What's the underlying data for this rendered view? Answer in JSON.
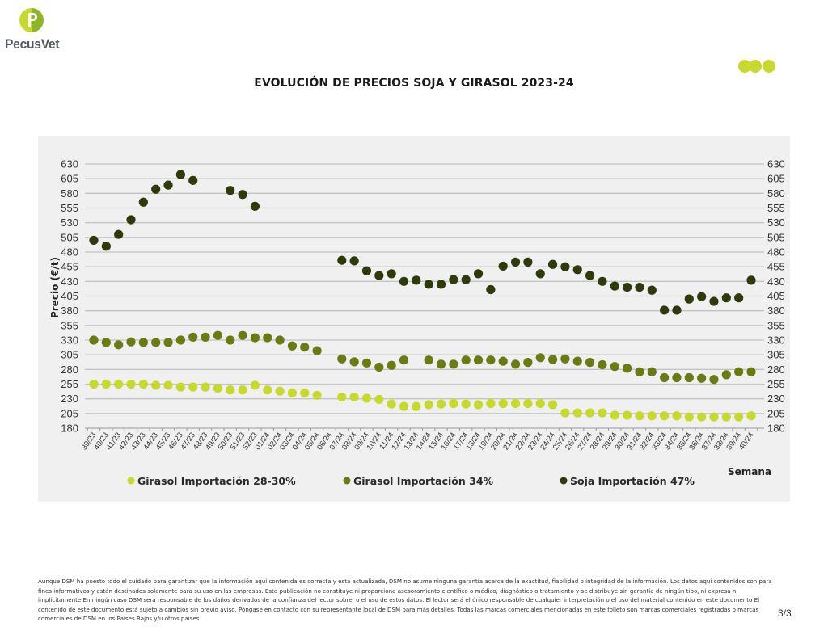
{
  "header": {
    "logo_text": "PecusVet",
    "logo_icon": "pecusvet-p-logo-icon",
    "decor_icon": "three-green-dots-icon"
  },
  "colors": {
    "girasol_28_30": "#c8d92d",
    "girasol_34": "#6b7a12",
    "soja_47": "#2e3a0a",
    "panel_bg": "#f0f0f0",
    "grid": "#c4c4c4",
    "logo_green": "#a8c62a"
  },
  "chart_data": {
    "type": "scatter",
    "title": "EVOLUCIÓN DE PRECIOS SOJA Y GIRASOL 2023-24",
    "xlabel": "Semana",
    "ylabel": "Precio (€/t)",
    "ylim": [
      180,
      630
    ],
    "yticks": [
      180,
      205,
      230,
      255,
      280,
      305,
      330,
      355,
      380,
      405,
      430,
      455,
      480,
      505,
      530,
      555,
      580,
      605,
      630
    ],
    "grid": true,
    "secondary_y_axis": true,
    "legend_position": "bottom",
    "categories": [
      "39/23",
      "40/23",
      "41/23",
      "42/23",
      "43/23",
      "44/23",
      "45/23",
      "46/23",
      "47/23",
      "48/23",
      "49/23",
      "50/23",
      "51/23",
      "52/23",
      "01/24",
      "02/24",
      "03/24",
      "04/24",
      "05/24",
      "06/24",
      "07/24",
      "08/24",
      "09/24",
      "10/24",
      "11/24",
      "12/24",
      "13/24",
      "14/24",
      "15/24",
      "16/24",
      "17/24",
      "18/24",
      "19/24",
      "20/24",
      "21/24",
      "22/24",
      "23/24",
      "24/24",
      "25/24",
      "26/24",
      "27/24",
      "28/24",
      "29/24",
      "30/24",
      "31/24",
      "32/24",
      "33/24",
      "34/24",
      "35/24",
      "36/24",
      "37/24",
      "38/24",
      "39/24",
      "40/24"
    ],
    "series": [
      {
        "name": "Girasol Importación 28-30%",
        "color_key": "girasol_28_30",
        "values": [
          255,
          255,
          255,
          255,
          255,
          253,
          253,
          250,
          250,
          250,
          248,
          245,
          245,
          253,
          245,
          243,
          240,
          240,
          236,
          null,
          233,
          233,
          231,
          229,
          221,
          217,
          217,
          220,
          221,
          222,
          221,
          220,
          222,
          222,
          222,
          222,
          222,
          220,
          206,
          206,
          206,
          206,
          202,
          202,
          201,
          201,
          201,
          201,
          199,
          199,
          199,
          199,
          199,
          201
        ]
      },
      {
        "name": "Girasol Importación 34%",
        "color_key": "girasol_34",
        "values": [
          330,
          326,
          322,
          327,
          326,
          326,
          326,
          330,
          335,
          335,
          338,
          330,
          338,
          334,
          334,
          330,
          320,
          318,
          312,
          null,
          298,
          293,
          291,
          284,
          287,
          296,
          null,
          296,
          289,
          289,
          296,
          296,
          296,
          294,
          289,
          292,
          300,
          297,
          298,
          294,
          292,
          288,
          285,
          282,
          276,
          276,
          266,
          266,
          266,
          265,
          263,
          271,
          276,
          276
        ]
      },
      {
        "name": "Soja Importación 47%",
        "color_key": "soja_47",
        "values": [
          500,
          490,
          510,
          535,
          565,
          587,
          594,
          612,
          602,
          null,
          null,
          585,
          578,
          558,
          null,
          null,
          null,
          null,
          null,
          null,
          466,
          465,
          448,
          440,
          443,
          430,
          432,
          425,
          425,
          433,
          433,
          443,
          416,
          456,
          463,
          463,
          443,
          459,
          455,
          450,
          440,
          430,
          422,
          420,
          420,
          415,
          381,
          381,
          400,
          404,
          396,
          402,
          402,
          432
        ]
      }
    ]
  },
  "footer": {
    "disclaimer": "Aunque DSM ha puesto todo el cuidado para garantizar que la información aquí contenida es correcta y está actualizada, DSM no asume ninguna garantía acerca de la exactitud, fiabilidad o integridad de la información. Los datos aquí contenidos son para fines informativos y están destinados solamente para su uso en las empresas. Esta publicación no constituye ni proporciona asesoramiento científico o médico, diagnóstico o tratamiento y se distribuye sin garantía de ningún tipo, ni expresa ni implícitamente En ningún caso DSM será responsable de los daños derivados de la confianza del lector sobre, o el uso de estos datos. El lector será el único responsable de cualquier interpretación o el uso del material contenido en este documento El contenido de este documento está sujeto a cambios sin previo aviso. Póngase en contacto con su representante local de DSM para más detalles. Todas las marcas comerciales mencionadas en este folleto son marcas comerciales registradas o marcas comerciales de DSM en los Países Bajos y/u otros países.",
    "page_number": "3/3"
  }
}
